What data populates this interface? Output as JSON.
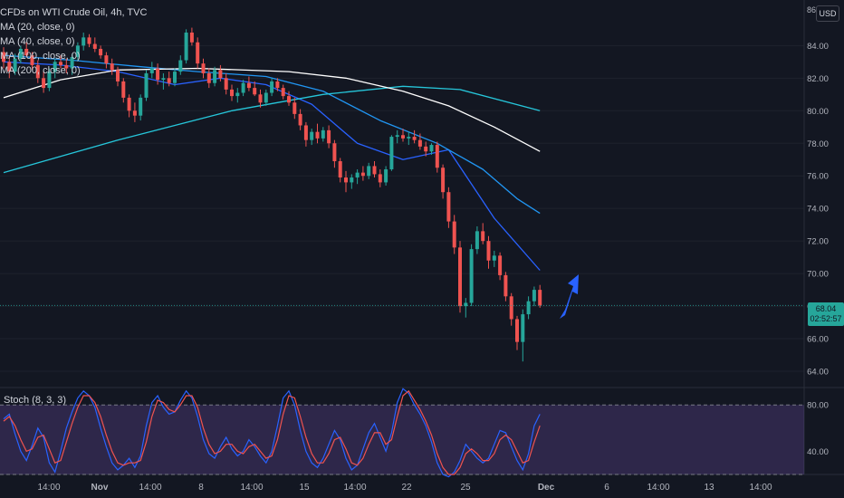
{
  "header": {
    "title": "CFDs on WTI Crude Oil, 4h, TVC",
    "indicators": [
      "MA (20, close, 0)",
      "MA (40, close, 0)",
      "MA (100, close, 0)",
      "MA (200, close, 0)"
    ],
    "currency": "USD",
    "axis_top_label": "86"
  },
  "last_price": {
    "value": "68.04",
    "countdown": "02:52:57"
  },
  "oscillator": {
    "label": "Stoch (8, 3, 3)"
  },
  "colors": {
    "background": "#131722",
    "up": "#26a69a",
    "down": "#ef5350",
    "ma20": "#2962ff",
    "ma40": "#2196f3",
    "ma100": "#26c6da",
    "ma200": "#ffffff",
    "stoch_k": "#2962ff",
    "stoch_d": "#ef5350",
    "stoch_band": "#7e57c2",
    "arrow": "#2962ff"
  },
  "chart_data": [
    {
      "type": "candlestick",
      "title": "CFDs on WTI Crude Oil, 4h, TVC",
      "xlabel": "",
      "ylabel": "",
      "ylim": [
        63.0,
        86.0
      ],
      "y_ticks": [
        "84.00",
        "82.00",
        "80.00",
        "78.00",
        "76.00",
        "74.00",
        "72.00",
        "70.00",
        "68.00",
        "66.00",
        "64.00"
      ],
      "x_ticks": [
        "14:00",
        "Nov",
        "14:00",
        "8",
        "14:00",
        "15",
        "14:00",
        "22",
        "25",
        "Dec",
        "6",
        "14:00",
        "13",
        "14:00"
      ],
      "candles": [
        [
          83.6,
          83.9,
          82.6,
          83.0
        ],
        [
          83.0,
          83.4,
          82.0,
          82.4
        ],
        [
          82.4,
          83.5,
          82.2,
          83.2
        ],
        [
          83.2,
          84.0,
          82.9,
          83.8
        ],
        [
          83.8,
          84.2,
          83.3,
          83.4
        ],
        [
          83.4,
          83.6,
          82.5,
          82.8
        ],
        [
          82.8,
          83.1,
          81.7,
          82.0
        ],
        [
          82.0,
          82.4,
          81.1,
          81.4
        ],
        [
          81.4,
          82.6,
          81.2,
          82.4
        ],
        [
          82.4,
          83.2,
          82.0,
          83.0
        ],
        [
          83.0,
          83.4,
          82.6,
          82.8
        ],
        [
          82.8,
          83.2,
          82.3,
          82.6
        ],
        [
          82.6,
          83.5,
          82.2,
          83.3
        ],
        [
          83.3,
          84.2,
          83.1,
          84.0
        ],
        [
          84.0,
          84.8,
          83.7,
          84.5
        ],
        [
          84.5,
          84.7,
          83.9,
          84.1
        ],
        [
          84.1,
          84.5,
          83.6,
          83.8
        ],
        [
          83.8,
          84.0,
          83.2,
          83.4
        ],
        [
          83.4,
          83.6,
          82.6,
          82.9
        ],
        [
          82.9,
          83.2,
          82.2,
          82.5
        ],
        [
          82.5,
          82.7,
          81.5,
          81.8
        ],
        [
          81.8,
          82.0,
          80.5,
          80.8
        ],
        [
          80.8,
          81.0,
          79.6,
          80.0
        ],
        [
          80.0,
          80.5,
          79.3,
          79.7
        ],
        [
          79.7,
          81.0,
          79.4,
          80.8
        ],
        [
          80.8,
          82.5,
          80.6,
          82.3
        ],
        [
          82.3,
          83.0,
          82.0,
          82.6
        ],
        [
          82.6,
          82.9,
          81.6,
          81.9
        ],
        [
          81.9,
          82.3,
          81.3,
          82.0
        ],
        [
          82.0,
          82.4,
          81.5,
          81.7
        ],
        [
          81.7,
          82.6,
          81.5,
          82.4
        ],
        [
          82.4,
          83.4,
          82.2,
          83.1
        ],
        [
          83.1,
          85.0,
          82.9,
          84.8
        ],
        [
          84.8,
          85.1,
          84.0,
          84.2
        ],
        [
          84.2,
          84.5,
          82.6,
          82.9
        ],
        [
          82.9,
          83.2,
          82.0,
          82.3
        ],
        [
          82.3,
          82.6,
          81.4,
          81.7
        ],
        [
          81.7,
          82.7,
          81.5,
          82.5
        ],
        [
          82.5,
          82.8,
          81.8,
          82.0
        ],
        [
          82.0,
          82.3,
          81.0,
          81.3
        ],
        [
          81.3,
          81.6,
          80.6,
          80.9
        ],
        [
          80.9,
          81.4,
          80.5,
          81.1
        ],
        [
          81.1,
          81.9,
          80.9,
          81.7
        ],
        [
          81.7,
          82.1,
          81.2,
          81.4
        ],
        [
          81.4,
          81.8,
          80.9,
          81.0
        ],
        [
          81.0,
          81.3,
          80.2,
          80.5
        ],
        [
          80.5,
          81.3,
          80.3,
          81.1
        ],
        [
          81.1,
          82.0,
          80.9,
          81.8
        ],
        [
          81.8,
          82.0,
          81.2,
          81.4
        ],
        [
          81.4,
          81.6,
          80.7,
          80.9
        ],
        [
          80.9,
          81.2,
          80.3,
          80.5
        ],
        [
          80.5,
          80.8,
          79.5,
          79.8
        ],
        [
          79.8,
          80.1,
          78.8,
          79.1
        ],
        [
          79.1,
          79.3,
          77.8,
          78.2
        ],
        [
          78.2,
          78.9,
          77.9,
          78.7
        ],
        [
          78.7,
          79.2,
          78.0,
          78.3
        ],
        [
          78.3,
          79.0,
          78.1,
          78.8
        ],
        [
          78.8,
          79.1,
          77.7,
          78.0
        ],
        [
          78.0,
          78.2,
          76.5,
          76.9
        ],
        [
          76.9,
          77.1,
          75.6,
          75.9
        ],
        [
          75.9,
          76.3,
          75.0,
          75.6
        ],
        [
          75.6,
          76.1,
          75.2,
          75.9
        ],
        [
          75.9,
          76.4,
          75.5,
          76.2
        ],
        [
          76.2,
          76.6,
          75.7,
          76.0
        ],
        [
          76.0,
          76.8,
          75.8,
          76.6
        ],
        [
          76.6,
          76.9,
          75.9,
          76.1
        ],
        [
          76.1,
          76.4,
          75.3,
          75.6
        ],
        [
          75.6,
          76.6,
          75.4,
          76.4
        ],
        [
          76.4,
          78.5,
          76.3,
          78.4
        ],
        [
          78.4,
          78.8,
          78.0,
          78.5
        ],
        [
          78.5,
          78.9,
          78.1,
          78.3
        ],
        [
          78.3,
          78.7,
          77.9,
          78.4
        ],
        [
          78.4,
          78.8,
          78.0,
          78.2
        ],
        [
          78.2,
          78.6,
          77.6,
          77.8
        ],
        [
          77.8,
          78.1,
          77.2,
          77.5
        ],
        [
          77.5,
          78.0,
          77.3,
          77.9
        ],
        [
          77.9,
          78.1,
          76.2,
          76.5
        ],
        [
          76.5,
          76.7,
          74.6,
          75.0
        ],
        [
          75.0,
          75.3,
          72.8,
          73.2
        ],
        [
          73.2,
          73.6,
          71.2,
          71.6
        ],
        [
          71.6,
          72.0,
          67.6,
          68.0
        ],
        [
          68.0,
          68.5,
          67.3,
          68.2
        ],
        [
          68.2,
          71.8,
          68.0,
          71.5
        ],
        [
          71.5,
          72.9,
          71.2,
          72.6
        ],
        [
          72.6,
          73.1,
          71.8,
          72.0
        ],
        [
          72.0,
          72.3,
          70.3,
          70.8
        ],
        [
          70.8,
          71.4,
          70.4,
          71.1
        ],
        [
          71.1,
          71.3,
          69.6,
          69.9
        ],
        [
          69.9,
          70.1,
          68.3,
          68.6
        ],
        [
          68.6,
          68.8,
          66.8,
          67.2
        ],
        [
          67.2,
          67.4,
          65.3,
          65.8
        ],
        [
          65.8,
          67.8,
          64.6,
          67.5
        ],
        [
          67.5,
          68.6,
          67.2,
          68.3
        ],
        [
          68.3,
          69.2,
          68.0,
          69.0
        ],
        [
          69.0,
          69.3,
          67.9,
          68.04
        ]
      ],
      "ma": {
        "MA (20, close, 0)": [
          [
            0,
            83.0
          ],
          [
            10,
            82.8
          ],
          [
            20,
            82.4
          ],
          [
            30,
            81.6
          ],
          [
            38,
            82.0
          ],
          [
            46,
            81.6
          ],
          [
            54,
            80.4
          ],
          [
            62,
            78.0
          ],
          [
            70,
            77.0
          ],
          [
            78,
            77.6
          ],
          [
            86,
            73.4
          ],
          [
            94,
            70.2
          ]
        ],
        "MA (40, close, 0)": [
          [
            0,
            83.4
          ],
          [
            12,
            83.1
          ],
          [
            24,
            82.7
          ],
          [
            34,
            82.4
          ],
          [
            46,
            82.1
          ],
          [
            56,
            81.2
          ],
          [
            66,
            79.4
          ],
          [
            76,
            78.0
          ],
          [
            84,
            76.4
          ],
          [
            90,
            74.6
          ],
          [
            94,
            73.7
          ]
        ],
        "MA (100, close, 0)": [
          [
            0,
            76.2
          ],
          [
            20,
            78.2
          ],
          [
            40,
            80.0
          ],
          [
            56,
            81.0
          ],
          [
            70,
            81.5
          ],
          [
            80,
            81.3
          ],
          [
            94,
            80.0
          ]
        ],
        "MA (200, close, 0)": [
          [
            0,
            80.8
          ],
          [
            10,
            81.9
          ],
          [
            20,
            82.5
          ],
          [
            34,
            82.6
          ],
          [
            50,
            82.4
          ],
          [
            60,
            82.0
          ],
          [
            70,
            81.2
          ],
          [
            78,
            80.3
          ],
          [
            86,
            79.0
          ],
          [
            94,
            77.5
          ]
        ]
      }
    },
    {
      "type": "line",
      "title": "Stoch (8, 3, 3)",
      "ylim": [
        20,
        95
      ],
      "y_ticks": [
        "80.00",
        "40.00"
      ],
      "band": [
        20,
        80
      ],
      "series": [
        {
          "name": "%K",
          "values": [
            68,
            72,
            55,
            40,
            32,
            45,
            60,
            52,
            30,
            22,
            40,
            60,
            74,
            86,
            92,
            88,
            78,
            60,
            44,
            30,
            24,
            28,
            34,
            26,
            36,
            62,
            82,
            88,
            78,
            72,
            74,
            84,
            92,
            86,
            70,
            50,
            38,
            34,
            44,
            52,
            42,
            36,
            40,
            50,
            44,
            36,
            30,
            40,
            62,
            86,
            92,
            80,
            58,
            40,
            30,
            26,
            34,
            46,
            58,
            50,
            34,
            24,
            28,
            42,
            56,
            64,
            52,
            40,
            56,
            82,
            94,
            90,
            80,
            72,
            62,
            48,
            30,
            20,
            18,
            22,
            32,
            46,
            40,
            34,
            30,
            34,
            46,
            58,
            56,
            44,
            32,
            24,
            38,
            62,
            72
          ]
        },
        {
          "name": "%D",
          "values": [
            66,
            70,
            62,
            50,
            40,
            42,
            52,
            54,
            42,
            30,
            32,
            48,
            64,
            78,
            88,
            88,
            82,
            70,
            54,
            40,
            30,
            28,
            30,
            30,
            32,
            48,
            70,
            84,
            82,
            76,
            74,
            80,
            88,
            88,
            78,
            60,
            46,
            38,
            40,
            46,
            46,
            40,
            38,
            44,
            46,
            40,
            34,
            36,
            50,
            72,
            88,
            86,
            70,
            52,
            38,
            30,
            30,
            38,
            50,
            52,
            42,
            30,
            28,
            34,
            46,
            56,
            56,
            46,
            50,
            70,
            88,
            92,
            84,
            76,
            66,
            54,
            38,
            26,
            20,
            20,
            26,
            38,
            42,
            38,
            32,
            32,
            38,
            50,
            54,
            50,
            40,
            30,
            32,
            48,
            62
          ]
        }
      ]
    }
  ]
}
